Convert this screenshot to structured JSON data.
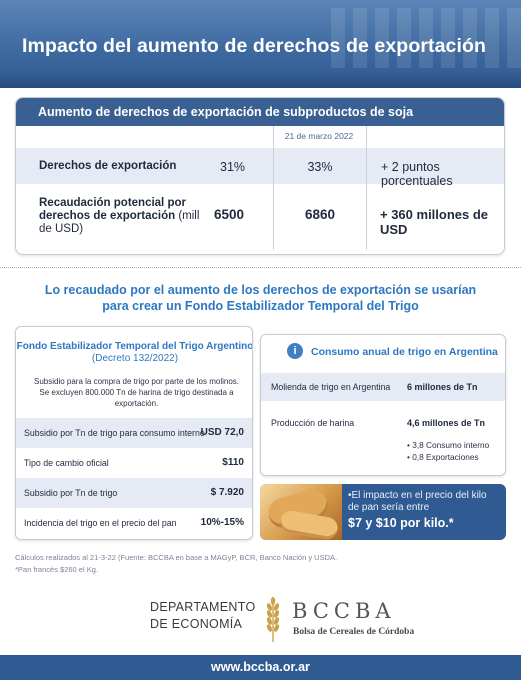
{
  "header": {
    "title": "Impacto del aumento de derechos de exportación"
  },
  "top_table": {
    "band_title": "Aumento de derechos de exportación de subproductos de soja",
    "date_header": "21 de marzo 2022",
    "rows": [
      {
        "label": "Derechos de exportación",
        "unit": "",
        "before": "31%",
        "after": "33%",
        "change": "+ 2 puntos porcentuales"
      },
      {
        "label": "Recaudación potencial por derechos de exportación",
        "unit": "(mill de USD)",
        "before": "6500",
        "after": "6860",
        "change": "+ 360 millones de USD"
      }
    ]
  },
  "mid_title": "Lo recaudado por el aumento de los derechos de exportación se usarían para crear un Fondo Estabilizador Temporal del Trigo",
  "fund": {
    "title": "Fondo Estabilizador Temporal del Trigo Argentino",
    "decree": "(Decreto 132/2022)",
    "description": "Subsidio para la compra de trigo por parte de los molinos. Se excluyen 800.000 Tn de harina de trigo destinada a exportación.",
    "rows": [
      {
        "label": "Subsidio por Tn de trigo para consumo interno",
        "value": "USD 72,0"
      },
      {
        "label": "Tipo de cambio oficial",
        "value": "$110"
      },
      {
        "label": "Subsidio por Tn de trigo",
        "value": "$ 7.920"
      },
      {
        "label": "Incidencia del trigo en el precio del pan",
        "value": "10%-15%"
      }
    ]
  },
  "consumo": {
    "icon_glyph": "i",
    "title": "Consumo anual de trigo en Argentina",
    "rows": [
      {
        "label": "Molienda de trigo en Argentina",
        "value": "6 millones de Tn"
      },
      {
        "label": "Producción de harina",
        "value": "4,6 millones de Tn"
      }
    ],
    "bullets": [
      "• 3,8 Consumo interno",
      "• 0,8 Exportaciones"
    ]
  },
  "promo": {
    "text": "•El impacto en el precio del kilo de pan sería entre",
    "highlight": "$7 y $10 por kilo.*"
  },
  "footnotes": [
    "Cálculos realizados al 21-3-22 (Fuente: BCCBA en base a MAGyP, BCR, Banco Nación y USDA.",
    "*Pan francés $260 el Kg."
  ],
  "logos": {
    "dept_line1": "DEPARTAMENTO",
    "dept_line2": "DE ECONOMÍA",
    "org_acronym": "BCCBA",
    "org_name": "Bolsa de Cereales de Córdoba"
  },
  "footer_url": "www.bccba.or.ar",
  "colors": {
    "primary": "#2f5a92",
    "accent": "#2e78c0",
    "row_shade": "#e6eaf4"
  }
}
